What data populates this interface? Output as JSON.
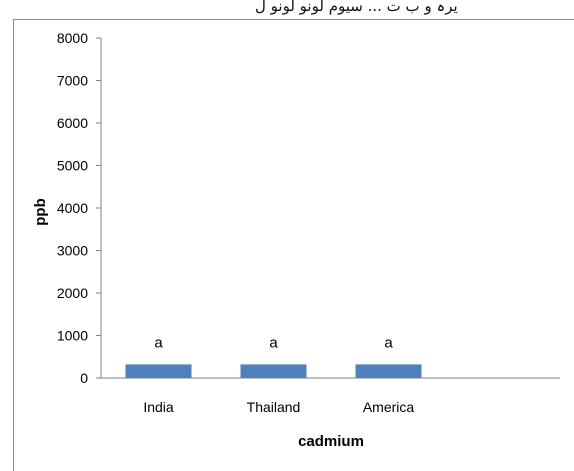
{
  "header_caption": "یرہ   و ب ت   ...  سیوم لونو لونو ل",
  "chart_data": {
    "type": "bar",
    "title": "",
    "xlabel": "cadmium",
    "ylabel": "ppb",
    "categories": [
      "India",
      "Thailand",
      "America"
    ],
    "values": [
      320,
      320,
      320
    ],
    "data_labels": [
      "a",
      "a",
      "a"
    ],
    "ylim": [
      0,
      8000
    ],
    "yticks": [
      0,
      1000,
      2000,
      3000,
      4000,
      5000,
      6000,
      7000,
      8000
    ],
    "grid": false,
    "legend": "none",
    "bar_color": "#4f81bd",
    "axis_color": "#808080"
  }
}
